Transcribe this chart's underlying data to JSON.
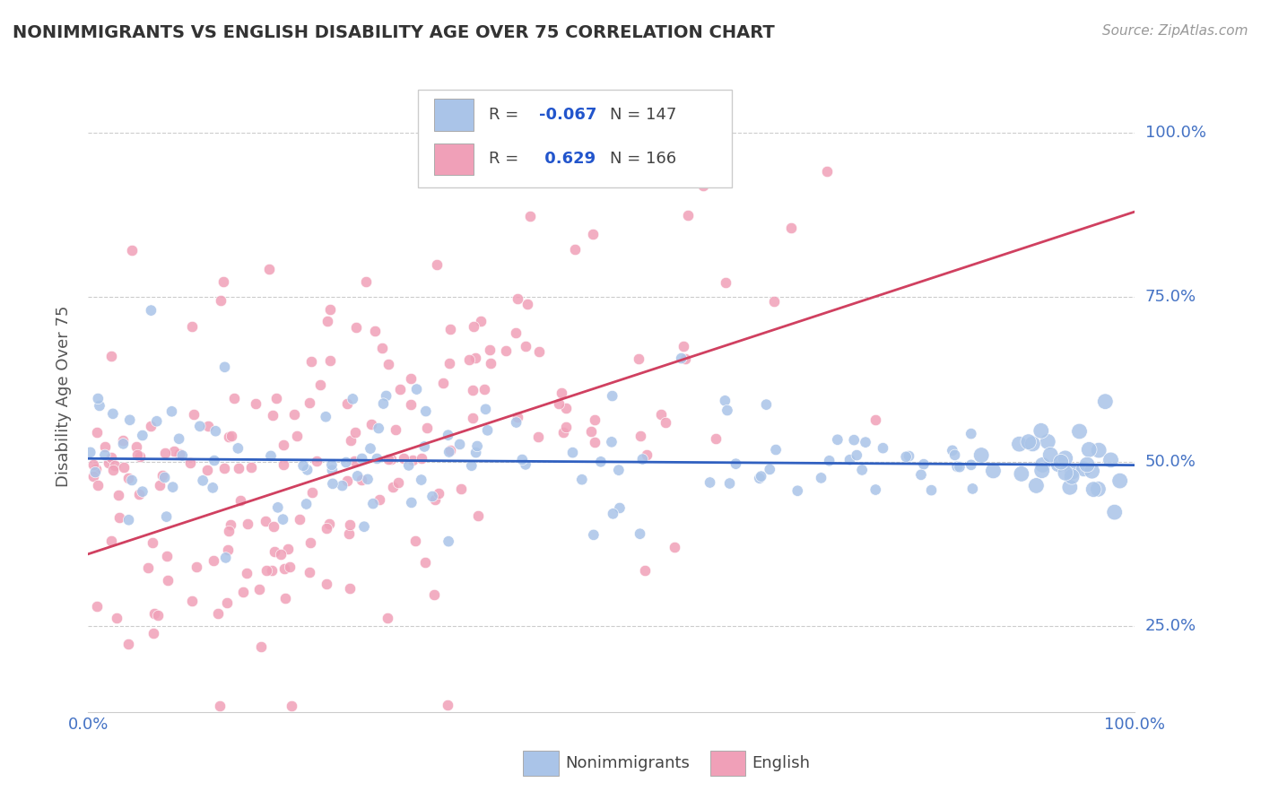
{
  "title": "NONIMMIGRANTS VS ENGLISH DISABILITY AGE OVER 75 CORRELATION CHART",
  "source_text": "Source: ZipAtlas.com",
  "ylabel": "Disability Age Over 75",
  "xlim": [
    0,
    1
  ],
  "ylim": [
    0.12,
    1.08
  ],
  "yticks": [
    0.25,
    0.5,
    0.75,
    1.0
  ],
  "ytick_labels": [
    "25.0%",
    "50.0%",
    "75.0%",
    "100.0%"
  ],
  "xtick_labels": [
    "0.0%",
    "100.0%"
  ],
  "blue_color": "#aac4e8",
  "pink_color": "#f0a0b8",
  "blue_line_color": "#3060c0",
  "pink_line_color": "#d04060",
  "R_blue": -0.067,
  "N_blue": 147,
  "R_pink": 0.629,
  "N_pink": 166,
  "blue_intercept": 0.505,
  "blue_slope": -0.01,
  "pink_intercept": 0.36,
  "pink_slope": 0.52,
  "nonimmigrant_legend": "Nonimmigrants",
  "english_legend": "English",
  "grid_color": "#cccccc",
  "background_color": "#ffffff",
  "title_color": "#333333",
  "axis_label_color": "#555555",
  "tick_color": "#4472c4",
  "source_color": "#999999",
  "legend_r_color": "#2255cc",
  "legend_n_color": "#333333"
}
